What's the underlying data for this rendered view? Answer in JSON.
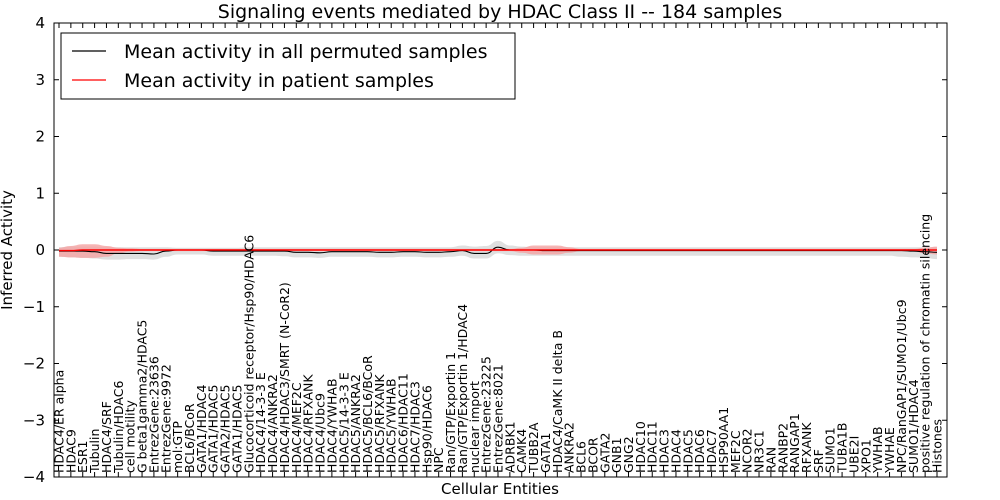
{
  "chart_data": {
    "type": "line",
    "title": "Signaling events mediated by HDAC Class II -- 184 samples",
    "xlabel": "Cellular Entities",
    "ylabel": "Inferred Activity",
    "ylim": [
      -4,
      4
    ],
    "yticks": [
      -4,
      -3,
      -2,
      -1,
      0,
      1,
      2,
      3,
      4
    ],
    "ytick_labels": [
      "−4",
      "−3",
      "−2",
      "−1",
      "0",
      "1",
      "2",
      "3",
      "4"
    ],
    "legend": {
      "placement": "top-left",
      "entries": [
        {
          "label": "Mean activity in all permuted samples",
          "color": "#000000"
        },
        {
          "label": "Mean activity in patient samples",
          "color": "#ff0000"
        }
      ]
    },
    "categories": [
      "HDAC4/ER alpha",
      "HDAC9",
      "ESR1",
      "Tubulin",
      "HDAC4/SRF",
      "Tubulin/HDAC6",
      "cell motility",
      "G beta1gamma2/HDAC5",
      "EntrezGene:23636",
      "EntrezGene:9972",
      "mol:GTP",
      "BCL6/BCoR",
      "GATA1/HDAC4",
      "GATA1/HDAC5",
      "GATA2/HDAC5",
      "GATA1/HDAC5",
      "Glucocorticoid receptor/Hsp90/HDAC6",
      "HDAC4/14-3-3 E",
      "HDAC4/ANKRA2",
      "HDAC4/HDAC3/SMRT (N-CoR2)",
      "HDAC4/MEF2C",
      "HDAC4/RFXANK",
      "HDAC4/Ubc9",
      "HDAC4/YWHAB",
      "HDAC5/14-3-3 E",
      "HDAC5/ANKRA2",
      "HDAC5/BCL6/BCoR",
      "HDAC5/RFXANK",
      "HDAC5/YWHAB",
      "HDAC6/HDAC11",
      "HDAC7/HDAC3",
      "Hsp90/HDAC6",
      "NPC",
      "Ran/GTP/Exportin 1",
      "Ran/GTP/Exportin 1/HDAC4",
      "nuclear import",
      "EntrezGene:23225",
      "EntrezGene:8021",
      "ADRBK1",
      "CAMK4",
      "TUBB2A",
      "GATA1",
      "HDAC4/CaMK II delta B",
      "ANKRA2",
      "BCL6",
      "BCOR",
      "GATA2",
      "GNB1",
      "GNG2",
      "HDAC10",
      "HDAC11",
      "HDAC3",
      "HDAC4",
      "HDAC5",
      "HDAC6",
      "HDAC7",
      "HSP90AA1",
      "MEF2C",
      "NCOR2",
      "NR3C1",
      "RAN",
      "RANBP2",
      "RANGAP1",
      "RFXANK",
      "SRF",
      "SUMO1",
      "TUBA1B",
      "UBE2I",
      "XPO1",
      "YWHAB",
      "YWHAE",
      "NPC/RanGAP1/SUMO1/Ubc9",
      "SUMO1/HDAC4",
      "positive regulation of chromatin silencing",
      "Histones"
    ],
    "series": [
      {
        "name": "Mean activity in all permuted samples",
        "color": "#000000",
        "values": [
          -0.02,
          -0.02,
          -0.02,
          -0.03,
          -0.06,
          -0.06,
          -0.06,
          -0.06,
          -0.07,
          -0.02,
          0.0,
          0.0,
          0.0,
          -0.02,
          -0.02,
          -0.02,
          -0.02,
          -0.02,
          -0.02,
          -0.02,
          -0.04,
          -0.04,
          -0.05,
          -0.03,
          -0.03,
          -0.03,
          -0.03,
          -0.04,
          -0.04,
          -0.03,
          -0.03,
          -0.04,
          -0.04,
          -0.03,
          -0.01,
          -0.06,
          -0.06,
          0.05,
          0.0,
          0.0,
          0.0,
          -0.01,
          -0.01,
          -0.01,
          -0.01,
          -0.01,
          -0.01,
          -0.01,
          -0.01,
          -0.01,
          -0.01,
          -0.01,
          -0.01,
          -0.01,
          -0.01,
          -0.01,
          -0.01,
          -0.01,
          -0.01,
          -0.01,
          -0.01,
          -0.01,
          -0.01,
          -0.01,
          -0.01,
          -0.01,
          -0.01,
          -0.01,
          -0.01,
          -0.01,
          -0.01,
          -0.01,
          -0.02,
          -0.03,
          -0.04
        ]
      },
      {
        "name": "Mean activity in patient samples",
        "color": "#ff0000",
        "values": [
          -0.01,
          -0.01,
          0.0,
          0.0,
          0.0,
          0.0,
          0.0,
          0.0,
          0.0,
          0.0,
          0.0,
          0.0,
          0.0,
          0.0,
          0.0,
          0.0,
          0.0,
          0.0,
          0.0,
          0.0,
          0.0,
          0.0,
          0.0,
          0.0,
          0.0,
          0.0,
          0.0,
          0.0,
          0.0,
          0.0,
          0.0,
          0.0,
          0.0,
          0.0,
          0.0,
          0.0,
          0.0,
          0.0,
          0.0,
          0.0,
          0.0,
          0.0,
          0.0,
          0.0,
          0.0,
          0.0,
          0.0,
          0.0,
          0.0,
          0.0,
          0.0,
          0.0,
          0.0,
          0.0,
          0.0,
          0.0,
          0.0,
          0.0,
          0.0,
          0.0,
          0.0,
          0.0,
          0.0,
          0.0,
          0.0,
          0.0,
          0.0,
          0.0,
          0.0,
          0.0,
          0.0,
          0.0,
          0.0,
          0.0,
          0.0
        ]
      }
    ],
    "bands": [
      {
        "name": "permuted samples spread",
        "color": "#d9d9d9",
        "upper": [
          0.05,
          0.06,
          0.06,
          0.06,
          0.05,
          0.05,
          0.05,
          0.05,
          0.05,
          0.05,
          0.04,
          0.04,
          0.04,
          0.04,
          0.04,
          0.04,
          0.05,
          0.05,
          0.05,
          0.05,
          0.05,
          0.05,
          0.05,
          0.05,
          0.05,
          0.05,
          0.05,
          0.05,
          0.05,
          0.05,
          0.05,
          0.05,
          0.05,
          0.05,
          0.08,
          0.06,
          0.07,
          0.16,
          0.08,
          0.06,
          0.05,
          0.05,
          0.05,
          0.05,
          0.05,
          0.05,
          0.05,
          0.05,
          0.05,
          0.05,
          0.05,
          0.05,
          0.05,
          0.05,
          0.05,
          0.05,
          0.05,
          0.05,
          0.05,
          0.05,
          0.05,
          0.05,
          0.05,
          0.05,
          0.05,
          0.05,
          0.05,
          0.05,
          0.05,
          0.05,
          0.05,
          0.05,
          0.05,
          0.05,
          0.05
        ],
        "lower": [
          -0.12,
          -0.13,
          -0.14,
          -0.15,
          -0.17,
          -0.17,
          -0.16,
          -0.16,
          -0.17,
          -0.12,
          -0.08,
          -0.08,
          -0.08,
          -0.1,
          -0.1,
          -0.1,
          -0.1,
          -0.1,
          -0.1,
          -0.11,
          -0.13,
          -0.13,
          -0.14,
          -0.12,
          -0.12,
          -0.12,
          -0.12,
          -0.13,
          -0.13,
          -0.12,
          -0.12,
          -0.13,
          -0.13,
          -0.12,
          -0.1,
          -0.15,
          -0.15,
          -0.06,
          -0.09,
          -0.1,
          -0.1,
          -0.1,
          -0.1,
          -0.1,
          -0.1,
          -0.1,
          -0.1,
          -0.1,
          -0.1,
          -0.1,
          -0.1,
          -0.1,
          -0.1,
          -0.1,
          -0.1,
          -0.1,
          -0.1,
          -0.1,
          -0.1,
          -0.1,
          -0.1,
          -0.1,
          -0.1,
          -0.1,
          -0.1,
          -0.1,
          -0.1,
          -0.1,
          -0.1,
          -0.1,
          -0.1,
          -0.12,
          -0.13,
          -0.14,
          -0.16
        ]
      },
      {
        "name": "patient samples spread",
        "color": "#f4a3a3",
        "upper": [
          0.04,
          0.07,
          0.1,
          0.1,
          0.07,
          0.04,
          0.03,
          0.02,
          0.02,
          0.02,
          0.02,
          0.02,
          0.02,
          0.02,
          0.02,
          0.02,
          0.02,
          0.02,
          0.02,
          0.02,
          0.02,
          0.02,
          0.02,
          0.02,
          0.02,
          0.02,
          0.02,
          0.02,
          0.02,
          0.02,
          0.02,
          0.02,
          0.02,
          0.02,
          0.02,
          0.02,
          0.02,
          0.02,
          0.02,
          0.04,
          0.08,
          0.08,
          0.08,
          0.05,
          0.02,
          0.02,
          0.02,
          0.02,
          0.02,
          0.02,
          0.02,
          0.02,
          0.02,
          0.02,
          0.02,
          0.02,
          0.02,
          0.02,
          0.02,
          0.02,
          0.02,
          0.02,
          0.02,
          0.02,
          0.02,
          0.02,
          0.02,
          0.02,
          0.02,
          0.02,
          0.02,
          0.02,
          0.02,
          0.04,
          0.06
        ],
        "lower": [
          -0.12,
          -0.13,
          -0.14,
          -0.14,
          -0.12,
          -0.06,
          -0.03,
          -0.02,
          -0.02,
          -0.02,
          -0.02,
          -0.02,
          -0.02,
          -0.02,
          -0.02,
          -0.02,
          -0.02,
          -0.02,
          -0.02,
          -0.02,
          -0.02,
          -0.02,
          -0.02,
          -0.02,
          -0.02,
          -0.02,
          -0.02,
          -0.02,
          -0.02,
          -0.02,
          -0.02,
          -0.02,
          -0.02,
          -0.02,
          -0.02,
          -0.02,
          -0.02,
          -0.02,
          -0.02,
          -0.05,
          -0.08,
          -0.08,
          -0.08,
          -0.05,
          -0.02,
          -0.02,
          -0.02,
          -0.02,
          -0.02,
          -0.02,
          -0.02,
          -0.02,
          -0.02,
          -0.02,
          -0.02,
          -0.02,
          -0.02,
          -0.02,
          -0.02,
          -0.02,
          -0.02,
          -0.02,
          -0.02,
          -0.02,
          -0.02,
          -0.02,
          -0.02,
          -0.02,
          -0.02,
          -0.02,
          -0.02,
          -0.02,
          -0.02,
          -0.06,
          -0.08
        ]
      }
    ]
  }
}
